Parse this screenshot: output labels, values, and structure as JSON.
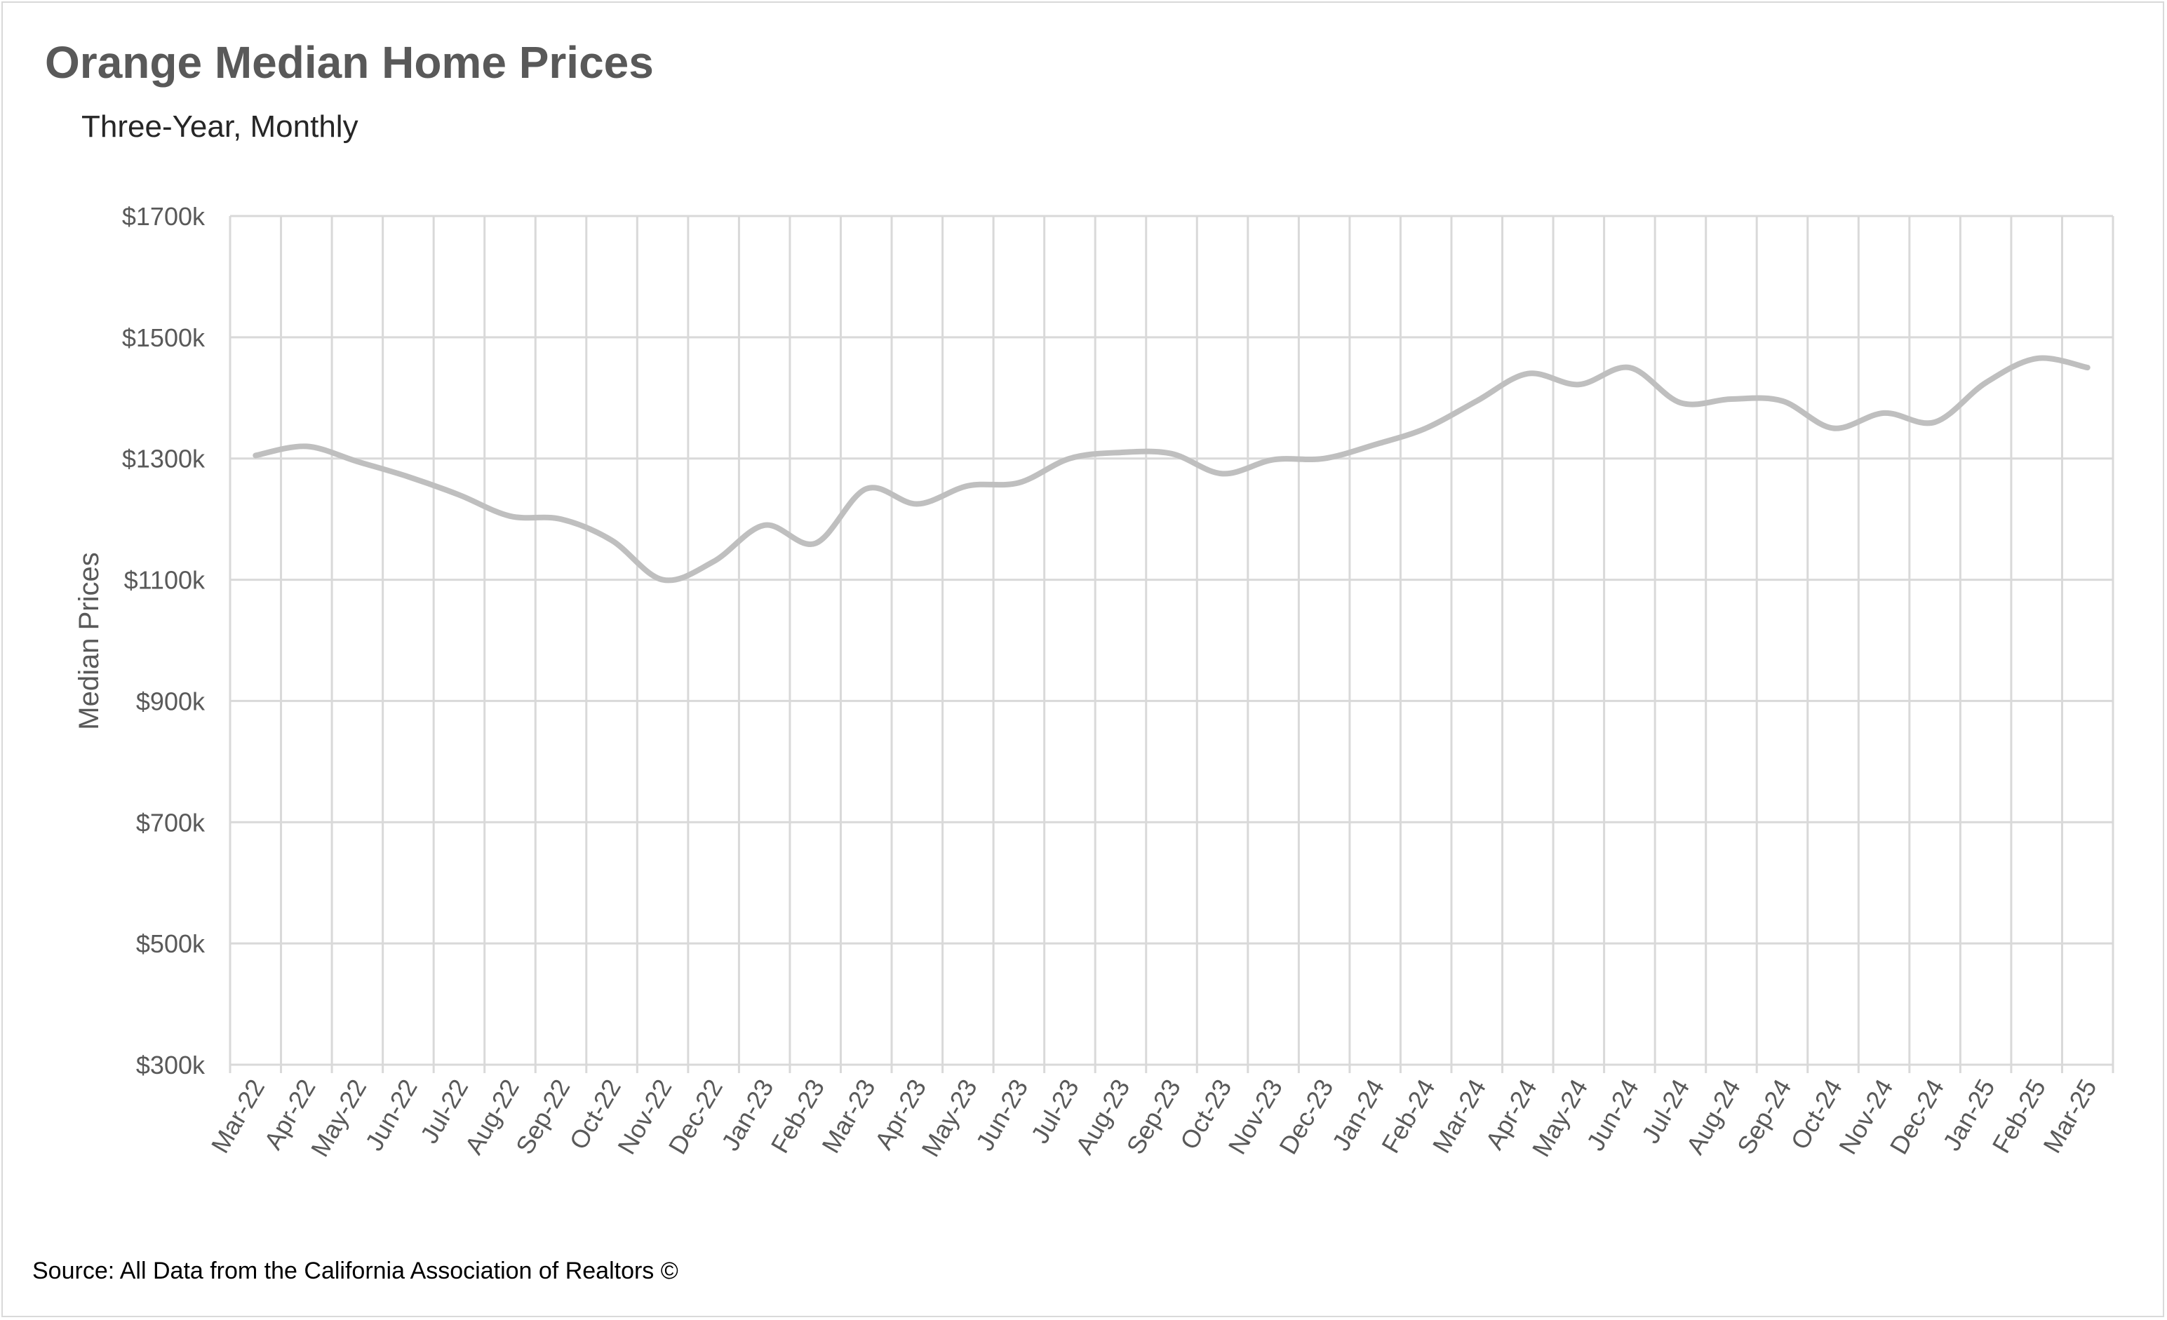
{
  "chart_title": "Orange Median Home Prices",
  "chart_subtitle": "Three-Year, Monthly",
  "source_note": "Source: All Data from the California Association of Realtors ©",
  "colors": {
    "line": "#bfbfbf",
    "grid": "#d9d9d9",
    "axis_text": "#595959",
    "title": "#595959"
  },
  "chart_data": {
    "type": "line",
    "title": "Orange Median Home Prices",
    "subtitle": "Three-Year, Monthly",
    "xlabel": "",
    "ylabel": "Median Prices",
    "ylim": [
      300,
      1700
    ],
    "yticks": [
      300,
      500,
      700,
      900,
      1100,
      1300,
      1500,
      1700
    ],
    "ytick_labels": [
      "$300k",
      "$500k",
      "$700k",
      "$900k",
      "$1100k",
      "$1300k",
      "$1500k",
      "$1700k"
    ],
    "grid": true,
    "legend": "none",
    "categories": [
      "Mar-22",
      "Apr-22",
      "May-22",
      "Jun-22",
      "Jul-22",
      "Aug-22",
      "Sep-22",
      "Oct-22",
      "Nov-22",
      "Dec-22",
      "Jan-23",
      "Feb-23",
      "Mar-23",
      "Apr-23",
      "May-23",
      "Jun-23",
      "Jul-23",
      "Aug-23",
      "Sep-23",
      "Oct-23",
      "Nov-23",
      "Dec-23",
      "Jan-24",
      "Feb-24",
      "Mar-24",
      "Apr-24",
      "May-24",
      "Jun-24",
      "Jul-24",
      "Aug-24",
      "Sep-24",
      "Oct-24",
      "Nov-24",
      "Dec-24",
      "Jan-25",
      "Feb-25",
      "Mar-25"
    ],
    "series": [
      {
        "values": [
          1305,
          1320,
          1295,
          1270,
          1240,
          1205,
          1200,
          1165,
          1100,
          1130,
          1190,
          1160,
          1250,
          1225,
          1255,
          1260,
          1300,
          1310,
          1308,
          1275,
          1298,
          1300,
          1323,
          1350,
          1395,
          1440,
          1422,
          1450,
          1392,
          1398,
          1395,
          1350,
          1375,
          1360,
          1425,
          1465,
          1450
        ]
      }
    ]
  }
}
